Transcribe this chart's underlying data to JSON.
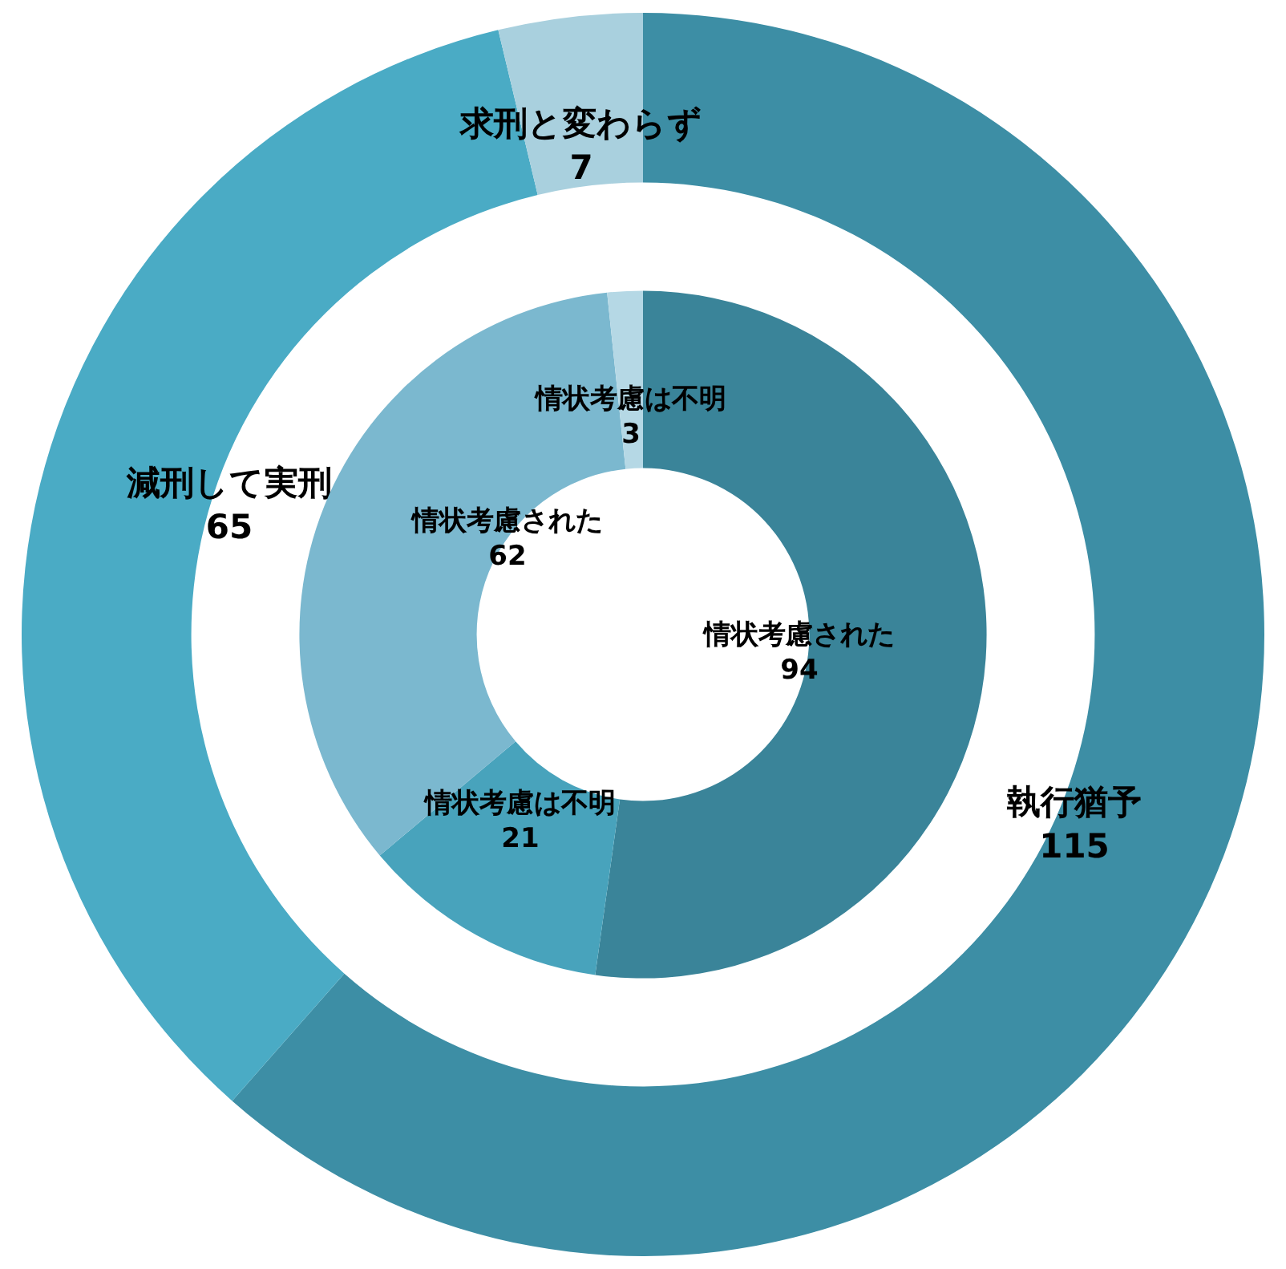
{
  "chart_data": [
    {
      "type": "donut",
      "categories": [
        "執行猶予",
        "減刑して実刑",
        "求刑と変わらず"
      ],
      "values": [
        115,
        65,
        7
      ],
      "colors": [
        "#3d8ea5",
        "#4aabc5",
        "#a9d0de"
      ],
      "data_labels": true
    },
    {
      "type": "donut",
      "categories": [
        "情状考慮された",
        "情状考慮は不明",
        "情状考慮された",
        "情状考慮は不明"
      ],
      "values": [
        94,
        21,
        62,
        3
      ],
      "colors": [
        "#3a8499",
        "#48a3bc",
        "#7bb8cf",
        "#b5d8e5"
      ],
      "data_labels": true
    }
  ]
}
